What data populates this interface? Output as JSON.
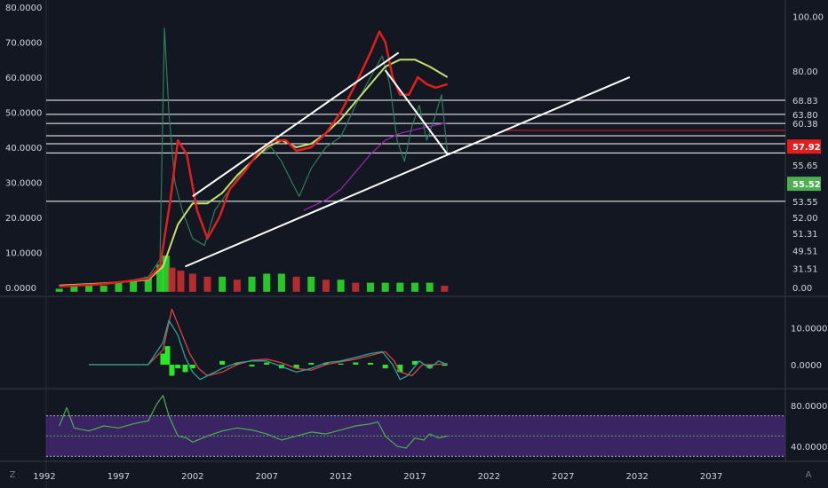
{
  "chart_data": [
    {
      "type": "line",
      "panel": "price",
      "left_axis_ticks": [
        {
          "value": 80,
          "label": "80.0000"
        },
        {
          "value": 70,
          "label": "70.0000"
        },
        {
          "value": 60,
          "label": "60.0000"
        },
        {
          "value": 50,
          "label": "50.0000"
        },
        {
          "value": 40,
          "label": "40.0000"
        },
        {
          "value": 30,
          "label": "30.0000"
        },
        {
          "value": 20,
          "label": "20.0000"
        },
        {
          "value": 10,
          "label": "10.0000"
        },
        {
          "value": 0,
          "label": "0.0000"
        }
      ],
      "ylim": [
        -2,
        82
      ],
      "right_axis_ticks": [
        {
          "price": 77.3,
          "label": "100.00"
        },
        {
          "price": 61.8,
          "label": "80.00"
        },
        {
          "price": 53.4,
          "label": "68.83"
        },
        {
          "price": 49.4,
          "label": "63.80"
        },
        {
          "price": 46.8,
          "label": "60.38"
        },
        {
          "price": 35.0,
          "label": "55.65"
        },
        {
          "price": 24.6,
          "label": "53.55"
        },
        {
          "price": 20.0,
          "label": "52.00"
        },
        {
          "price": 15.4,
          "label": "51.31"
        },
        {
          "price": 10.5,
          "label": "49.51"
        },
        {
          "price": 5.5,
          "label": "31.51"
        },
        {
          "price": 0,
          "label": "0.00"
        }
      ],
      "price_badges": [
        {
          "price": 40.2,
          "label": "57.92",
          "color": "#e01e1e"
        },
        {
          "price": 29.6,
          "label": "55.52",
          "color": "#4caf50"
        }
      ],
      "horizontal_levels": [
        53.4,
        49.4,
        46.8,
        43.3,
        41.0,
        38.4,
        24.6
      ],
      "close": [
        [
          1993.0,
          0.3
        ],
        [
          1994.5,
          0.6
        ],
        [
          1996,
          1
        ],
        [
          1997.5,
          1.8
        ],
        [
          1999,
          3
        ],
        [
          1999.8,
          8
        ],
        [
          2000.1,
          74
        ],
        [
          2000.4,
          50
        ],
        [
          2000.8,
          30
        ],
        [
          2001.3,
          22
        ],
        [
          2002,
          14
        ],
        [
          2002.8,
          12
        ],
        [
          2003.5,
          22
        ],
        [
          2004.5,
          28
        ],
        [
          2005.5,
          34
        ],
        [
          2006.5,
          38
        ],
        [
          2007.3,
          40
        ],
        [
          2008,
          36
        ],
        [
          2008.7,
          30
        ],
        [
          2009.2,
          26
        ],
        [
          2010,
          34
        ],
        [
          2011,
          40
        ],
        [
          2012,
          43
        ],
        [
          2013,
          52
        ],
        [
          2014,
          60
        ],
        [
          2014.8,
          66
        ],
        [
          2015.3,
          58
        ],
        [
          2015.8,
          42
        ],
        [
          2016.3,
          36
        ],
        [
          2016.8,
          46
        ],
        [
          2017.3,
          52
        ],
        [
          2017.8,
          42
        ],
        [
          2018.3,
          48
        ],
        [
          2018.8,
          55
        ],
        [
          2019.2,
          38
        ]
      ],
      "ma_red": [
        [
          1993.0,
          0.3
        ],
        [
          1996,
          1
        ],
        [
          1999,
          2.5
        ],
        [
          1999.8,
          6
        ],
        [
          2000.5,
          25
        ],
        [
          2001,
          42
        ],
        [
          2001.6,
          38
        ],
        [
          2002.3,
          22
        ],
        [
          2003,
          14
        ],
        [
          2003.8,
          20
        ],
        [
          2004.5,
          28
        ],
        [
          2005.5,
          33
        ],
        [
          2006.5,
          39
        ],
        [
          2007.5,
          42
        ],
        [
          2008.3,
          42
        ],
        [
          2009,
          39
        ],
        [
          2010,
          40
        ],
        [
          2011,
          44
        ],
        [
          2012,
          50
        ],
        [
          2013,
          58
        ],
        [
          2014,
          67
        ],
        [
          2014.6,
          73
        ],
        [
          2015,
          70
        ],
        [
          2015.5,
          60
        ],
        [
          2016,
          55
        ],
        [
          2016.6,
          55
        ],
        [
          2017.2,
          60
        ],
        [
          2017.8,
          58
        ],
        [
          2018.4,
          57
        ],
        [
          2019.2,
          58
        ]
      ],
      "ma_yellow": [
        [
          1993.0,
          0.6
        ],
        [
          1996,
          1.2
        ],
        [
          1999,
          2.2
        ],
        [
          2000,
          6
        ],
        [
          2001,
          18
        ],
        [
          2002,
          24
        ],
        [
          2003,
          24
        ],
        [
          2004,
          27
        ],
        [
          2005,
          32
        ],
        [
          2006,
          36
        ],
        [
          2007,
          40
        ],
        [
          2008,
          42
        ],
        [
          2009,
          40
        ],
        [
          2010,
          41
        ],
        [
          2011,
          44
        ],
        [
          2012,
          48
        ],
        [
          2013,
          53
        ],
        [
          2014,
          58
        ],
        [
          2015,
          63
        ],
        [
          2016,
          65
        ],
        [
          2017,
          65
        ],
        [
          2018,
          63
        ],
        [
          2019.2,
          60
        ]
      ],
      "ma_purple": [
        [
          2009.5,
          22
        ],
        [
          2011,
          25
        ],
        [
          2012,
          28
        ],
        [
          2013,
          33
        ],
        [
          2014,
          38
        ],
        [
          2015,
          42
        ],
        [
          2016,
          44
        ],
        [
          2017,
          45
        ],
        [
          2018,
          46
        ],
        [
          2019.2,
          47
        ]
      ],
      "trend_lines": [
        [
          [
            2002,
            26
          ],
          [
            2015.9,
            67
          ]
        ],
        [
          [
            2001.5,
            6
          ],
          [
            2031.5,
            60
          ]
        ],
        [
          [
            2015,
            62
          ],
          [
            2019.2,
            38
          ]
        ]
      ],
      "volume": [
        [
          1993,
          1
        ],
        [
          1994,
          2
        ],
        [
          1995,
          2
        ],
        [
          1996,
          2
        ],
        [
          1997,
          3
        ],
        [
          1998,
          4
        ],
        [
          1999,
          5
        ],
        [
          1999.8,
          9
        ],
        [
          2000.2,
          12
        ],
        [
          2000.6,
          8
        ],
        [
          2001.2,
          7
        ],
        [
          2002,
          6
        ],
        [
          2003,
          5
        ],
        [
          2004,
          5
        ],
        [
          2005,
          4
        ],
        [
          2006,
          5
        ],
        [
          2007,
          6
        ],
        [
          2008,
          6
        ],
        [
          2009,
          5
        ],
        [
          2010,
          5
        ],
        [
          2011,
          4
        ],
        [
          2012,
          4
        ],
        [
          2013,
          3
        ],
        [
          2014,
          3
        ],
        [
          2015,
          3
        ],
        [
          2016,
          3
        ],
        [
          2017,
          3
        ],
        [
          2018,
          3
        ],
        [
          2019,
          2
        ]
      ]
    },
    {
      "type": "line",
      "panel": "macd",
      "right_axis_ticks": [
        {
          "value": 10,
          "label": "10.0000"
        },
        {
          "value": 0,
          "label": "0.0000"
        }
      ],
      "ylim": [
        -6,
        18
      ],
      "macd": [
        [
          1995,
          0
        ],
        [
          1999,
          0
        ],
        [
          2000,
          6
        ],
        [
          2000.4,
          12
        ],
        [
          2001,
          8
        ],
        [
          2001.5,
          2
        ],
        [
          2002,
          -2
        ],
        [
          2002.5,
          -4
        ],
        [
          2003,
          -3
        ],
        [
          2004,
          -1
        ],
        [
          2005,
          0.5
        ],
        [
          2006,
          1
        ],
        [
          2007,
          1
        ],
        [
          2008,
          -0.5
        ],
        [
          2009,
          -2
        ],
        [
          2010,
          -1
        ],
        [
          2011,
          0.5
        ],
        [
          2012,
          1
        ],
        [
          2013,
          2
        ],
        [
          2014,
          3
        ],
        [
          2014.8,
          3.5
        ],
        [
          2015.5,
          0
        ],
        [
          2016,
          -4
        ],
        [
          2016.5,
          -3
        ],
        [
          2017.3,
          1
        ],
        [
          2018,
          -1
        ],
        [
          2018.6,
          1
        ],
        [
          2019.2,
          0
        ]
      ],
      "signal": [
        [
          1995,
          0
        ],
        [
          1999,
          0
        ],
        [
          2000,
          4
        ],
        [
          2000.6,
          15
        ],
        [
          2001.2,
          9
        ],
        [
          2001.8,
          3
        ],
        [
          2002.4,
          -1
        ],
        [
          2003,
          -3
        ],
        [
          2004,
          -2
        ],
        [
          2005,
          0
        ],
        [
          2006,
          1.2
        ],
        [
          2007,
          1.5
        ],
        [
          2008,
          0.5
        ],
        [
          2009,
          -1
        ],
        [
          2010,
          -1.5
        ],
        [
          2011,
          0
        ],
        [
          2012,
          0.8
        ],
        [
          2013,
          1.5
        ],
        [
          2014,
          2.5
        ],
        [
          2015,
          3.5
        ],
        [
          2015.6,
          1
        ],
        [
          2016,
          -2
        ],
        [
          2016.8,
          -3
        ],
        [
          2017.5,
          0
        ],
        [
          2018.2,
          0
        ],
        [
          2019.2,
          0.3
        ]
      ],
      "histogram": [
        [
          1999,
          0
        ],
        [
          2000,
          3
        ],
        [
          2000.3,
          5
        ],
        [
          2000.6,
          -3
        ],
        [
          2001,
          -1
        ],
        [
          2001.5,
          -2
        ],
        [
          2002,
          -1
        ],
        [
          2003,
          0
        ],
        [
          2004,
          1
        ],
        [
          2005,
          0.5
        ],
        [
          2006,
          -0.5
        ],
        [
          2007,
          0.6
        ],
        [
          2008,
          -1
        ],
        [
          2009,
          -1
        ],
        [
          2010,
          0.5
        ],
        [
          2011,
          0.5
        ],
        [
          2012,
          0.3
        ],
        [
          2013,
          0.6
        ],
        [
          2014,
          0.5
        ],
        [
          2015,
          -1
        ],
        [
          2016,
          -2
        ],
        [
          2017,
          1
        ],
        [
          2018,
          -1
        ],
        [
          2019,
          -0.3
        ]
      ]
    },
    {
      "type": "line",
      "panel": "rsi",
      "right_axis_ticks": [
        {
          "value": 80,
          "label": "80.0000"
        },
        {
          "value": 40,
          "label": "40.0000"
        }
      ],
      "ylim": [
        25,
        95
      ],
      "band": [
        30,
        70
      ],
      "midline": 50,
      "rsi": [
        [
          1993,
          60
        ],
        [
          1993.5,
          78
        ],
        [
          1994,
          58
        ],
        [
          1995,
          55
        ],
        [
          1996,
          60
        ],
        [
          1997,
          58
        ],
        [
          1998,
          62
        ],
        [
          1999,
          65
        ],
        [
          1999.6,
          82
        ],
        [
          2000,
          90
        ],
        [
          2000.4,
          70
        ],
        [
          2001,
          50
        ],
        [
          2001.6,
          48
        ],
        [
          2002,
          44
        ],
        [
          2003,
          50
        ],
        [
          2004,
          55
        ],
        [
          2005,
          58
        ],
        [
          2006,
          56
        ],
        [
          2007,
          52
        ],
        [
          2008,
          46
        ],
        [
          2009,
          50
        ],
        [
          2010,
          54
        ],
        [
          2011,
          52
        ],
        [
          2012,
          56
        ],
        [
          2013,
          60
        ],
        [
          2014,
          62
        ],
        [
          2014.5,
          64
        ],
        [
          2015,
          50
        ],
        [
          2015.8,
          40
        ],
        [
          2016.4,
          38
        ],
        [
          2017,
          48
        ],
        [
          2017.6,
          46
        ],
        [
          2018,
          52
        ],
        [
          2018.6,
          48
        ],
        [
          2019.2,
          50
        ]
      ]
    }
  ],
  "x_axis_ticks": [
    1992,
    1997,
    2002,
    2007,
    2012,
    2017,
    2022,
    2027,
    2032,
    2037
  ],
  "xlim": [
    1989,
    2042
  ],
  "colors": {
    "background": "#131722",
    "close": "#2e7d5b",
    "ma_red": "#e01e1e",
    "ma_yellow": "#c6e06d",
    "ma_purple": "#9c27b0",
    "volume_up": "#2ce62c",
    "volume_down": "#d32f2f",
    "macd": "#26a69a",
    "signal": "#e04040",
    "rsi": "#4caf50",
    "rsi_band": "#4a2a7a",
    "text": "#d1d4dc",
    "level_line": "#ffffff"
  },
  "corner_left_icon": "Z",
  "corner_right_icon": "A"
}
